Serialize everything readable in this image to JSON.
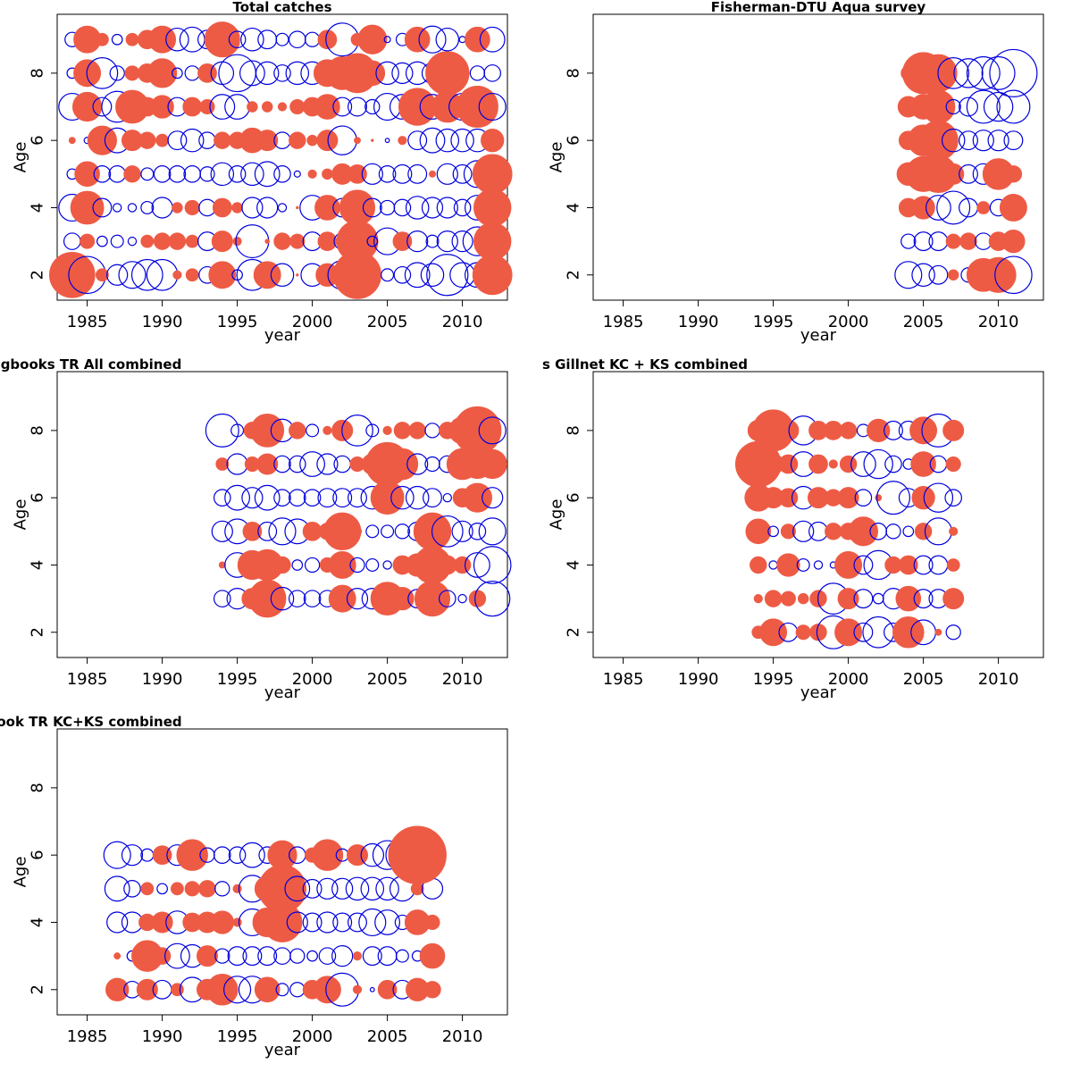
{
  "legend_colors": {
    "positive": "#ee5b45",
    "negative": "#0000dd"
  },
  "chart_data": [
    {
      "type": "bubble",
      "title": "Total catches",
      "xlabel": "year",
      "ylabel": "Age",
      "xlim": [
        1983,
        2013
      ],
      "ylim": [
        1.25,
        9.75
      ],
      "xticks": [
        1985,
        1990,
        1995,
        2000,
        2005,
        2010
      ],
      "yticks": [
        2,
        4,
        6,
        8
      ],
      "grid": false,
      "years": [
        1984,
        1985,
        1986,
        1987,
        1988,
        1989,
        1990,
        1991,
        1992,
        1993,
        1994,
        1995,
        1996,
        1997,
        1998,
        1999,
        2000,
        2001,
        2002,
        2003,
        2004,
        2005,
        2006,
        2007,
        2008,
        2009,
        2010,
        2011,
        2012
      ],
      "ages": [
        2,
        3,
        4,
        5,
        6,
        7,
        8,
        9
      ],
      "residuals": {
        "2": [
          2.2,
          -1.8,
          0.6,
          -1.0,
          -1.3,
          -1.5,
          -1.5,
          0.4,
          0.6,
          -0.8,
          1.3,
          -0.5,
          -1.5,
          1.3,
          -1.1,
          0.1,
          -1.1,
          1.1,
          -1.4,
          2.3,
          0.7,
          -0.6,
          -0.8,
          -1.2,
          -1.1,
          -2.0,
          -1.2,
          -1.2,
          1.9
        ],
        "3": [
          -0.8,
          0.7,
          -0.5,
          -0.6,
          -0.4,
          0.6,
          0.8,
          0.8,
          0.6,
          -0.9,
          1.0,
          0.4,
          -1.6,
          0.2,
          0.8,
          0.7,
          -0.9,
          0.9,
          -0.8,
          2.0,
          -0.5,
          -1.3,
          0.9,
          -1.0,
          -0.6,
          -1.0,
          -1.0,
          -1.4,
          1.8
        ],
        "4": [
          -1.3,
          1.6,
          -0.9,
          -0.4,
          -0.4,
          -0.6,
          -1.0,
          0.5,
          0.7,
          -0.8,
          0.9,
          0.5,
          -1.0,
          -1.0,
          -0.4,
          0.1,
          -1.2,
          1.2,
          -0.9,
          1.7,
          -0.9,
          -0.7,
          -0.8,
          -1.1,
          -1.0,
          -1.0,
          -0.8,
          -1.2,
          1.8
        ],
        "5": [
          -0.5,
          1.2,
          -0.8,
          -0.8,
          0.8,
          -0.6,
          -0.8,
          -0.8,
          -0.8,
          -0.7,
          -1.1,
          -0.8,
          -1.1,
          -1.2,
          -0.8,
          -0.3,
          0.4,
          0.5,
          1.0,
          0.9,
          -1.0,
          -0.8,
          -0.9,
          -0.9,
          0.3,
          -1.0,
          -0.9,
          -1.3,
          1.9
        ],
        "6": [
          0.3,
          -0.3,
          1.4,
          -1.2,
          1.0,
          0.8,
          0.6,
          -0.9,
          -1.1,
          -0.8,
          0.8,
          0.8,
          1.2,
          1.0,
          -0.8,
          0.8,
          0.5,
          1.0,
          -1.4,
          0.3,
          0.1,
          -0.2,
          0.4,
          -0.9,
          -1.2,
          -1.1,
          -1.1,
          -1.1,
          1.1
        ],
        "7": [
          -1.3,
          1.4,
          -0.9,
          -1.5,
          1.6,
          0.9,
          1.1,
          -0.9,
          0.9,
          0.7,
          -1.2,
          -1.2,
          0.5,
          0.5,
          0.4,
          0.7,
          0.9,
          1.2,
          -0.9,
          -0.9,
          -0.7,
          -1.3,
          -1.2,
          1.8,
          -1.2,
          1.5,
          -1.3,
          2.0,
          -1.3
        ],
        "8": [
          -0.5,
          1.3,
          -1.5,
          -0.7,
          0.7,
          0.9,
          1.4,
          -0.5,
          -0.7,
          0.9,
          -1.1,
          -1.8,
          -1.2,
          -1.1,
          -0.8,
          -1.1,
          -1.1,
          1.3,
          1.6,
          1.9,
          1.2,
          -1.1,
          -1.0,
          -1.1,
          -1.0,
          2.1,
          0.3,
          -0.7,
          -0.8
        ],
        "9": [
          -0.7,
          1.3,
          0.6,
          -0.5,
          0.6,
          0.9,
          1.3,
          -1.1,
          -1.2,
          -0.9,
          1.7,
          -0.8,
          -1.1,
          -0.9,
          -0.6,
          -0.8,
          -0.7,
          0.9,
          -1.6,
          0.6,
          1.4,
          -0.3,
          -0.6,
          1.2,
          -1.3,
          -1.1,
          -0.3,
          1.2,
          -1.2
        ]
      }
    },
    {
      "type": "bubble",
      "title": "Fisherman-DTU Aqua survey",
      "xlabel": "year",
      "ylabel": "Age",
      "xlim": [
        1983,
        2013
      ],
      "ylim": [
        1.25,
        9.75
      ],
      "xticks": [
        1985,
        1990,
        1995,
        2000,
        2005,
        2010
      ],
      "yticks": [
        2,
        4,
        6,
        8
      ],
      "grid": false,
      "years": [
        2004,
        2005,
        2006,
        2007,
        2008,
        2009,
        2010,
        2011
      ],
      "ages": [
        2,
        3,
        4,
        5,
        6,
        7,
        8
      ],
      "residuals": {
        "2": [
          -1.3,
          -1.1,
          -0.9,
          0.5,
          -0.7,
          1.6,
          1.7,
          -1.8
        ],
        "3": [
          -0.7,
          -0.9,
          -0.9,
          0.7,
          0.8,
          -0.8,
          0.9,
          1.1
        ],
        "4": [
          0.9,
          1.1,
          -1.2,
          -1.6,
          -0.9,
          0.6,
          -0.8,
          1.3
        ],
        "5": [
          1.1,
          1.7,
          1.8,
          1.0,
          -0.9,
          -1.0,
          1.5,
          0.8
        ],
        "6": [
          0.9,
          1.5,
          1.9,
          -1.1,
          -0.9,
          -1.0,
          -1.0,
          -0.9
        ],
        "7": [
          1.0,
          1.2,
          1.6,
          -0.7,
          -0.9,
          -1.6,
          -1.4,
          -1.6
        ],
        "8": [
          0.7,
          2.0,
          1.8,
          -1.5,
          -1.4,
          -1.6,
          -1.6,
          -2.3
        ]
      }
    },
    {
      "type": "bubble",
      "title": "Logbooks TR All combined",
      "title_visible": "gbooks TR All combined",
      "xlabel": "year",
      "ylabel": "Age",
      "xlim": [
        1983,
        2013
      ],
      "ylim": [
        1.25,
        9.75
      ],
      "xticks": [
        1985,
        1990,
        1995,
        2000,
        2005,
        2010
      ],
      "yticks": [
        2,
        4,
        6,
        8
      ],
      "grid": false,
      "years": [
        1994,
        1995,
        1996,
        1997,
        1998,
        1999,
        2000,
        2001,
        2002,
        2003,
        2004,
        2005,
        2006,
        2007,
        2008,
        2009,
        2010,
        2011,
        2012
      ],
      "ages": [
        3,
        4,
        5,
        6,
        7,
        8
      ],
      "residuals": {
        "3": [
          -0.8,
          -1.0,
          1.0,
          1.8,
          -1.1,
          -0.8,
          -0.8,
          -0.8,
          1.3,
          -1.0,
          -1.0,
          1.6,
          1.1,
          -0.9,
          1.7,
          -0.8,
          -0.4,
          0.8,
          -1.7
        ],
        "4": [
          0.3,
          -1.2,
          1.4,
          1.5,
          0.8,
          -0.5,
          -0.7,
          0.7,
          1.3,
          -0.7,
          -0.6,
          -0.4,
          0.9,
          1.1,
          1.8,
          0.9,
          0.8,
          -1.2,
          -1.8
        ],
        "5": [
          -1.0,
          -1.2,
          0.9,
          -0.9,
          -1.3,
          -1.2,
          0.9,
          0.8,
          1.8,
          0.4,
          -0.6,
          -0.6,
          -0.7,
          -0.9,
          1.8,
          -1.5,
          -1.0,
          -0.8,
          -1.3
        ],
        "6": [
          -0.8,
          -1.2,
          -1.0,
          -1.2,
          -0.8,
          -0.8,
          -0.8,
          -0.9,
          -0.9,
          -0.9,
          -1.1,
          1.6,
          -1.1,
          -1.1,
          -0.9,
          -0.4,
          0.9,
          1.4,
          -1.0
        ],
        "7": [
          0.6,
          -1.0,
          0.7,
          1.0,
          -0.8,
          -0.8,
          -1.2,
          -1.0,
          -0.8,
          0.7,
          1.0,
          2.1,
          1.5,
          -1.0,
          -0.7,
          -0.8,
          1.5,
          1.4,
          1.4
        ],
        "8": [
          -1.6,
          -0.6,
          0.8,
          1.6,
          -1.1,
          0.8,
          -0.6,
          0.4,
          1.0,
          -1.5,
          -0.6,
          0.4,
          0.8,
          0.8,
          -0.7,
          0.8,
          1.3,
          2.3,
          -1.3
        ]
      }
    },
    {
      "type": "bubble",
      "title": "Logbooks Gillnet KC + KS combined",
      "title_visible": "s Gillnet KC + KS combined",
      "xlabel": "year",
      "ylabel": "Age",
      "xlim": [
        1983,
        2013
      ],
      "ylim": [
        1.25,
        9.75
      ],
      "xticks": [
        1985,
        1990,
        1995,
        2000,
        2005,
        2010
      ],
      "yticks": [
        2,
        4,
        6,
        8
      ],
      "grid": false,
      "years": [
        1994,
        1995,
        1996,
        1997,
        1998,
        1999,
        2000,
        2001,
        2002,
        2003,
        2004,
        2005,
        2006,
        2007
      ],
      "ages": [
        2,
        3,
        4,
        5,
        6,
        7,
        8
      ],
      "residuals": {
        "2": [
          0.6,
          1.3,
          -0.9,
          0.7,
          0.8,
          -1.6,
          1.3,
          -0.9,
          -1.5,
          -0.9,
          1.5,
          -1.2,
          0.3,
          -0.7
        ],
        "3": [
          0.4,
          0.8,
          0.7,
          0.5,
          0.8,
          -1.5,
          1.0,
          -0.9,
          -0.5,
          -1.0,
          1.2,
          -0.9,
          -0.9,
          1.0
        ],
        "4": [
          0.8,
          -0.4,
          1.1,
          -0.6,
          -0.4,
          -0.3,
          1.3,
          -0.9,
          -1.4,
          0.8,
          0.9,
          -0.9,
          -0.9,
          0.6
        ],
        "5": [
          1.2,
          -0.5,
          0.7,
          -1.0,
          -0.9,
          0.8,
          0.8,
          1.4,
          -0.8,
          -0.7,
          -0.5,
          0.8,
          -1.3,
          0.4
        ],
        "6": [
          1.3,
          1.0,
          0.9,
          -1.1,
          1.0,
          0.8,
          1.0,
          -0.8,
          0.3,
          -1.6,
          -0.9,
          1.1,
          -1.4,
          -0.8
        ],
        "7": [
          2.2,
          1.0,
          0.9,
          -1.2,
          0.9,
          0.4,
          0.8,
          -1.2,
          -1.4,
          -0.8,
          -0.5,
          1.2,
          -0.8,
          0.7
        ],
        "8": [
          1.0,
          2.0,
          1.0,
          -1.4,
          0.9,
          0.9,
          0.8,
          -0.6,
          1.1,
          -0.9,
          -0.9,
          1.3,
          -1.6,
          1.0
        ]
      }
    },
    {
      "type": "bubble",
      "title": "Logbook TR KC+KS combined",
      "title_visible": "ook TR KC+KS combined",
      "xlabel": "year",
      "ylabel": "Age",
      "xlim": [
        1983,
        2013
      ],
      "ylim": [
        1.25,
        9.75
      ],
      "xticks": [
        1985,
        1990,
        1995,
        2000,
        2005,
        2010
      ],
      "yticks": [
        2,
        4,
        6,
        8
      ],
      "grid": false,
      "years": [
        1987,
        1988,
        1989,
        1990,
        1991,
        1992,
        1993,
        1994,
        1995,
        1996,
        1997,
        1998,
        1999,
        2000,
        2001,
        2002,
        2003,
        2004,
        2005,
        2006,
        2007,
        2008
      ],
      "ages": [
        2,
        3,
        4,
        5,
        6
      ],
      "residuals": {
        "2": [
          1.1,
          -0.8,
          1.0,
          -0.9,
          0.6,
          -1.2,
          1.0,
          1.5,
          -1.3,
          -1.3,
          1.2,
          -0.6,
          -0.7,
          0.9,
          1.3,
          -1.6,
          0.4,
          -0.2,
          0.9,
          -0.9,
          1.1,
          0.8
        ],
        "3": [
          0.3,
          -0.5,
          1.5,
          0.8,
          -1.2,
          -1.1,
          1.0,
          -0.7,
          -0.9,
          -0.9,
          -0.9,
          -0.8,
          -0.7,
          -0.5,
          -0.8,
          -1.0,
          0.4,
          -0.9,
          -0.9,
          -0.6,
          -0.5,
          1.2
        ],
        "4": [
          -1.0,
          -1.0,
          0.8,
          1.0,
          -1.1,
          0.9,
          1.0,
          1.1,
          0.4,
          -1.3,
          1.4,
          1.9,
          -1.0,
          -0.9,
          -1.0,
          -0.9,
          -0.9,
          -1.3,
          -1.2,
          -0.7,
          1.2,
          0.7
        ],
        "5": [
          -1.2,
          -0.8,
          0.6,
          -0.5,
          0.6,
          0.7,
          0.8,
          -0.7,
          0.4,
          -1.3,
          1.2,
          2.3,
          -1.2,
          -0.9,
          -1.0,
          -1.0,
          -1.1,
          -1.1,
          -1.1,
          -1.2,
          0.6,
          -1.0
        ],
        "6": [
          -1.3,
          -1.0,
          -0.6,
          0.9,
          -1.0,
          1.5,
          -0.7,
          -0.8,
          -0.8,
          -1.2,
          -0.8,
          1.4,
          -0.8,
          0.7,
          1.5,
          -0.6,
          1.0,
          -1.1,
          -1.4,
          -1.6,
          2.8,
          0.3
        ]
      }
    }
  ]
}
